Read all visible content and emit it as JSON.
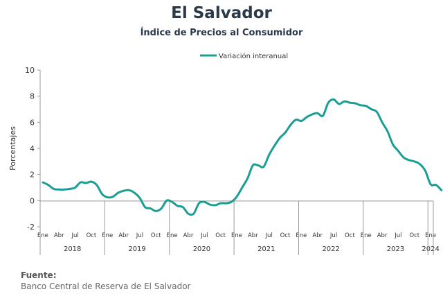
{
  "title": "El Salvador",
  "subtitle": "Índice de Precios al Consumidor",
  "source": {
    "label": "Fuente:",
    "text": "Banco Central de Reserva de El Salvador"
  },
  "chart_data": {
    "type": "line",
    "ylabel": "Porcentajes",
    "ylim": [
      -2,
      10
    ],
    "yticks": [
      -2,
      0,
      2,
      4,
      6,
      8,
      10
    ],
    "grid": false,
    "legend_position": "top-center",
    "month_ticks": [
      "Ene",
      "Abr",
      "Jul",
      "Oct"
    ],
    "years": [
      "2018",
      "2019",
      "2020",
      "2021",
      "2022",
      "2023",
      "2024"
    ],
    "last_year_month_ticks": [
      "Ene"
    ],
    "color": "#1a9e93",
    "series": [
      {
        "name": "Variación interanual",
        "values": [
          1.4,
          1.2,
          0.9,
          0.85,
          0.85,
          0.9,
          1.0,
          1.4,
          1.35,
          1.45,
          1.2,
          0.5,
          0.25,
          0.3,
          0.6,
          0.75,
          0.8,
          0.6,
          0.2,
          -0.5,
          -0.6,
          -0.8,
          -0.6,
          0.0,
          -0.1,
          -0.4,
          -0.5,
          -1.0,
          -1.0,
          -0.2,
          -0.1,
          -0.3,
          -0.35,
          -0.2,
          -0.2,
          -0.1,
          0.3,
          1.0,
          1.7,
          2.7,
          2.7,
          2.6,
          3.5,
          4.2,
          4.8,
          5.2,
          5.8,
          6.2,
          6.1,
          6.4,
          6.6,
          6.7,
          6.5,
          7.5,
          7.75,
          7.4,
          7.6,
          7.5,
          7.45,
          7.3,
          7.25,
          7.0,
          6.8,
          6.0,
          5.3,
          4.3,
          3.8,
          3.3,
          3.1,
          3.0,
          2.8,
          2.3,
          1.25,
          1.2,
          0.8
        ]
      }
    ]
  }
}
